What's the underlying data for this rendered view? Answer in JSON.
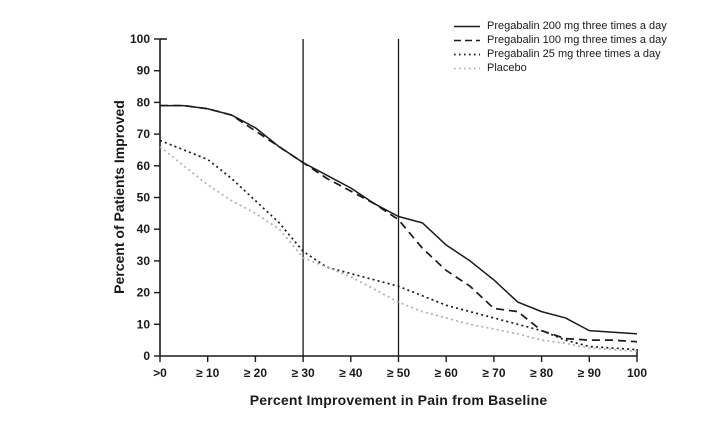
{
  "chart_data": {
    "type": "line",
    "title": "",
    "xlabel": "Percent Improvement in Pain from Baseline",
    "ylabel": "Percent of Patients Improved",
    "xlim": [
      0,
      100
    ],
    "ylim": [
      0,
      100
    ],
    "grid": false,
    "legend_position": "top-right",
    "x_tick_values": [
      0,
      10,
      20,
      30,
      40,
      50,
      60,
      70,
      80,
      90,
      100
    ],
    "x_tick_labels": [
      ">0",
      "≥ 10",
      "≥ 20",
      "≥ 30",
      "≥ 40",
      "≥ 50",
      "≥ 60",
      "≥ 70",
      "≥ 80",
      "≥ 90",
      "100"
    ],
    "y_tick_values": [
      0,
      10,
      20,
      30,
      40,
      50,
      60,
      70,
      80,
      90,
      100
    ],
    "y_tick_labels": [
      "0",
      "10",
      "20",
      "30",
      "40",
      "50",
      "60",
      "70",
      "80",
      "90",
      "100"
    ],
    "reference_lines_x": [
      30,
      50
    ],
    "x": [
      0,
      5,
      10,
      15,
      20,
      25,
      30,
      35,
      40,
      45,
      50,
      55,
      60,
      65,
      70,
      75,
      80,
      85,
      90,
      95,
      100
    ],
    "series": [
      {
        "name": "Pregabalin 200 mg three times a day",
        "style": "solid",
        "color": "#1a1a1a",
        "values": [
          79,
          79,
          78,
          76,
          72,
          66,
          61,
          57,
          53,
          48,
          44,
          42,
          35,
          30,
          24,
          17,
          14,
          12,
          8,
          7.5,
          7
        ]
      },
      {
        "name": "Pregabalin 100 mg three times a day",
        "style": "dashed",
        "color": "#1a1a1a",
        "values": [
          79,
          79,
          78,
          76,
          71,
          66,
          61,
          56,
          52,
          48,
          43,
          34,
          27,
          22,
          15,
          14,
          8,
          5.5,
          5,
          5,
          4.5
        ]
      },
      {
        "name": "Pregabalin 25 mg three times a day",
        "style": "dotted",
        "color": "#1a1a1a",
        "values": [
          68,
          65,
          62,
          56,
          49,
          42,
          33,
          28,
          26,
          24,
          22,
          19,
          16,
          14,
          12,
          10,
          8,
          5,
          3,
          2.5,
          2
        ]
      },
      {
        "name": "Placebo",
        "style": "dotted",
        "color": "#b0b0b0",
        "values": [
          66,
          60,
          54,
          49,
          45,
          40,
          31,
          28,
          25,
          21,
          17,
          14,
          12,
          10,
          8.5,
          7,
          5,
          4,
          2.5,
          2,
          1.5
        ]
      }
    ]
  },
  "colors": {
    "axis": "#1a1a1a",
    "placebo": "#b0b0b0"
  }
}
